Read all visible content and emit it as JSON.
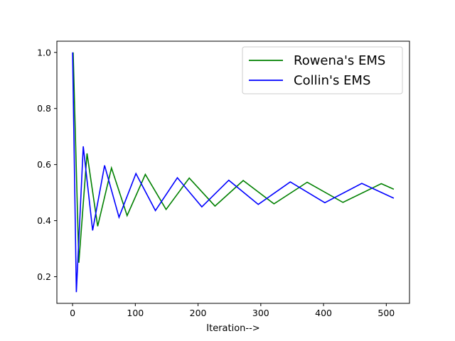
{
  "chart_data": {
    "type": "line",
    "title": "",
    "xlabel": "Iteration-->",
    "ylabel": "",
    "xlim": [
      -25,
      537
    ],
    "ylim": [
      0.105,
      1.04
    ],
    "xticks": [
      0,
      100,
      200,
      300,
      400,
      500
    ],
    "xtick_labels": [
      "0",
      "100",
      "200",
      "300",
      "400",
      "500"
    ],
    "yticks": [
      0.2,
      0.4,
      0.6,
      0.8,
      1.0
    ],
    "ytick_labels": [
      "0.2",
      "0.4",
      "0.6",
      "0.8",
      "1.0"
    ],
    "grid": false,
    "legend_position": "top-right",
    "series": [
      {
        "name": "Rowena's EMS",
        "color": "#008000",
        "x": [
          1,
          10,
          23,
          40,
          62,
          87,
          116,
          149,
          186,
          227,
          272,
          321,
          374,
          431,
          492,
          512
        ],
        "y": [
          1.0,
          0.25,
          0.64,
          0.38,
          0.588,
          0.418,
          0.565,
          0.44,
          0.552,
          0.452,
          0.543,
          0.46,
          0.537,
          0.465,
          0.532,
          0.512
        ]
      },
      {
        "name": "Collin's EMS",
        "color": "#0000ff",
        "x": [
          0,
          6,
          17,
          32,
          51,
          74,
          101,
          132,
          167,
          206,
          249,
          296,
          347,
          402,
          461,
          512
        ],
        "y": [
          1.0,
          0.145,
          0.665,
          0.365,
          0.597,
          0.412,
          0.568,
          0.436,
          0.553,
          0.449,
          0.544,
          0.458,
          0.538,
          0.464,
          0.533,
          0.48
        ]
      }
    ]
  }
}
